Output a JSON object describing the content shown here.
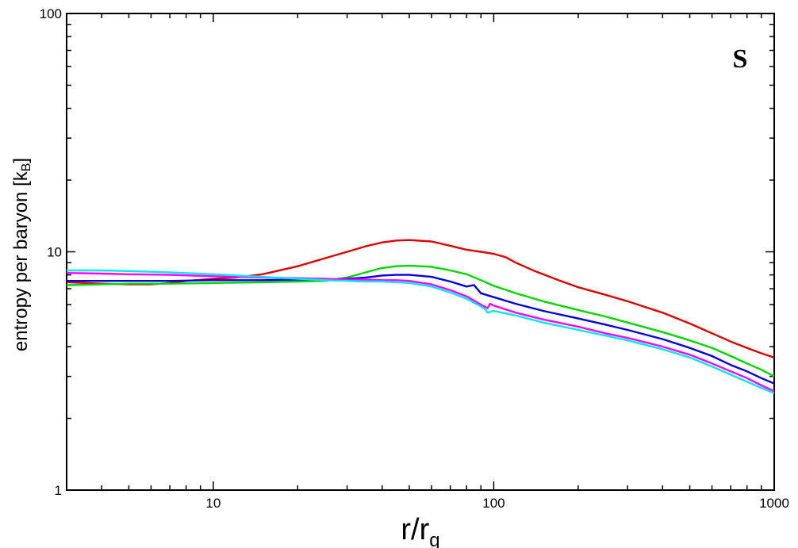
{
  "chart_data": {
    "type": "line",
    "title": "",
    "annotation": "S",
    "xlabel": {
      "main": "r/r",
      "sub": "g"
    },
    "ylabel": {
      "main": "entropy per baryon [k",
      "sub": "B",
      "close": "]"
    },
    "x_scale": "log",
    "y_scale": "log",
    "xlim": [
      3,
      1000
    ],
    "ylim": [
      1,
      100
    ],
    "x_ticks": [
      {
        "value": 10,
        "label": "10"
      },
      {
        "value": 100,
        "label": "100"
      },
      {
        "value": 1000,
        "label": "1000"
      }
    ],
    "y_ticks": [
      {
        "value": 1,
        "label": "1"
      },
      {
        "value": 10,
        "label": "10"
      },
      {
        "value": 100,
        "label": "100"
      }
    ],
    "grid": false,
    "legend": "none",
    "series": [
      {
        "color": "#e00000",
        "points": [
          [
            3,
            7.45
          ],
          [
            3.5,
            7.4
          ],
          [
            4,
            7.35
          ],
          [
            5,
            7.3
          ],
          [
            6,
            7.3
          ],
          [
            7,
            7.4
          ],
          [
            8,
            7.55
          ],
          [
            10,
            7.7
          ],
          [
            12,
            7.8
          ],
          [
            15,
            8.05
          ],
          [
            20,
            8.7
          ],
          [
            25,
            9.4
          ],
          [
            30,
            10.0
          ],
          [
            35,
            10.55
          ],
          [
            40,
            10.95
          ],
          [
            45,
            11.15
          ],
          [
            50,
            11.2
          ],
          [
            60,
            11.05
          ],
          [
            70,
            10.6
          ],
          [
            80,
            10.2
          ],
          [
            90,
            10.0
          ],
          [
            100,
            9.8
          ],
          [
            110,
            9.5
          ],
          [
            120,
            9.0
          ],
          [
            140,
            8.3
          ],
          [
            170,
            7.6
          ],
          [
            200,
            7.1
          ],
          [
            250,
            6.6
          ],
          [
            300,
            6.2
          ],
          [
            400,
            5.55
          ],
          [
            500,
            5.0
          ],
          [
            600,
            4.55
          ],
          [
            700,
            4.2
          ],
          [
            800,
            3.95
          ],
          [
            900,
            3.75
          ],
          [
            1000,
            3.6
          ]
        ]
      },
      {
        "color": "#00d800",
        "points": [
          [
            3,
            7.25
          ],
          [
            4,
            7.3
          ],
          [
            5,
            7.35
          ],
          [
            7,
            7.35
          ],
          [
            10,
            7.4
          ],
          [
            15,
            7.45
          ],
          [
            20,
            7.5
          ],
          [
            25,
            7.55
          ],
          [
            30,
            7.8
          ],
          [
            35,
            8.2
          ],
          [
            40,
            8.55
          ],
          [
            45,
            8.7
          ],
          [
            50,
            8.75
          ],
          [
            60,
            8.65
          ],
          [
            70,
            8.35
          ],
          [
            80,
            8.05
          ],
          [
            90,
            7.6
          ],
          [
            100,
            7.2
          ],
          [
            120,
            6.7
          ],
          [
            150,
            6.2
          ],
          [
            200,
            5.7
          ],
          [
            250,
            5.35
          ],
          [
            300,
            5.05
          ],
          [
            400,
            4.6
          ],
          [
            500,
            4.25
          ],
          [
            600,
            3.95
          ],
          [
            700,
            3.65
          ],
          [
            800,
            3.4
          ],
          [
            900,
            3.2
          ],
          [
            1000,
            3.0
          ]
        ]
      },
      {
        "color": "#0000e0",
        "points": [
          [
            3,
            7.55
          ],
          [
            4,
            7.55
          ],
          [
            5,
            7.55
          ],
          [
            7,
            7.55
          ],
          [
            10,
            7.6
          ],
          [
            15,
            7.6
          ],
          [
            20,
            7.65
          ],
          [
            25,
            7.65
          ],
          [
            30,
            7.7
          ],
          [
            35,
            7.8
          ],
          [
            40,
            7.95
          ],
          [
            45,
            8.0
          ],
          [
            50,
            8.0
          ],
          [
            60,
            7.85
          ],
          [
            70,
            7.5
          ],
          [
            80,
            7.15
          ],
          [
            85,
            7.25
          ],
          [
            90,
            6.7
          ],
          [
            100,
            6.45
          ],
          [
            120,
            6.05
          ],
          [
            150,
            5.65
          ],
          [
            200,
            5.25
          ],
          [
            250,
            4.95
          ],
          [
            300,
            4.7
          ],
          [
            400,
            4.3
          ],
          [
            500,
            3.95
          ],
          [
            600,
            3.65
          ],
          [
            700,
            3.35
          ],
          [
            800,
            3.15
          ],
          [
            900,
            2.95
          ],
          [
            1000,
            2.8
          ]
        ]
      },
      {
        "color": "#ff00ff",
        "points": [
          [
            3,
            8.15
          ],
          [
            4,
            8.1
          ],
          [
            5,
            8.05
          ],
          [
            7,
            8.0
          ],
          [
            10,
            7.9
          ],
          [
            15,
            7.8
          ],
          [
            20,
            7.75
          ],
          [
            25,
            7.7
          ],
          [
            30,
            7.65
          ],
          [
            35,
            7.65
          ],
          [
            40,
            7.6
          ],
          [
            45,
            7.6
          ],
          [
            50,
            7.55
          ],
          [
            60,
            7.3
          ],
          [
            70,
            6.9
          ],
          [
            80,
            6.5
          ],
          [
            90,
            6.0
          ],
          [
            95,
            5.8
          ],
          [
            97,
            6.05
          ],
          [
            100,
            5.95
          ],
          [
            120,
            5.55
          ],
          [
            150,
            5.2
          ],
          [
            200,
            4.85
          ],
          [
            250,
            4.55
          ],
          [
            300,
            4.35
          ],
          [
            400,
            4.0
          ],
          [
            500,
            3.7
          ],
          [
            600,
            3.4
          ],
          [
            700,
            3.15
          ],
          [
            800,
            2.95
          ],
          [
            900,
            2.75
          ],
          [
            1000,
            2.6
          ]
        ]
      },
      {
        "color": "#00e8f0",
        "points": [
          [
            3,
            8.35
          ],
          [
            4,
            8.35
          ],
          [
            5,
            8.3
          ],
          [
            7,
            8.2
          ],
          [
            10,
            8.05
          ],
          [
            15,
            7.85
          ],
          [
            20,
            7.7
          ],
          [
            25,
            7.6
          ],
          [
            30,
            7.55
          ],
          [
            35,
            7.5
          ],
          [
            40,
            7.5
          ],
          [
            45,
            7.45
          ],
          [
            50,
            7.4
          ],
          [
            60,
            7.15
          ],
          [
            70,
            6.75
          ],
          [
            80,
            6.35
          ],
          [
            90,
            5.9
          ],
          [
            93,
            5.75
          ],
          [
            95,
            5.55
          ],
          [
            100,
            5.65
          ],
          [
            120,
            5.4
          ],
          [
            150,
            5.05
          ],
          [
            200,
            4.7
          ],
          [
            250,
            4.45
          ],
          [
            300,
            4.25
          ],
          [
            400,
            3.9
          ],
          [
            500,
            3.6
          ],
          [
            600,
            3.3
          ],
          [
            700,
            3.05
          ],
          [
            800,
            2.85
          ],
          [
            900,
            2.68
          ],
          [
            1000,
            2.55
          ]
        ]
      }
    ]
  }
}
